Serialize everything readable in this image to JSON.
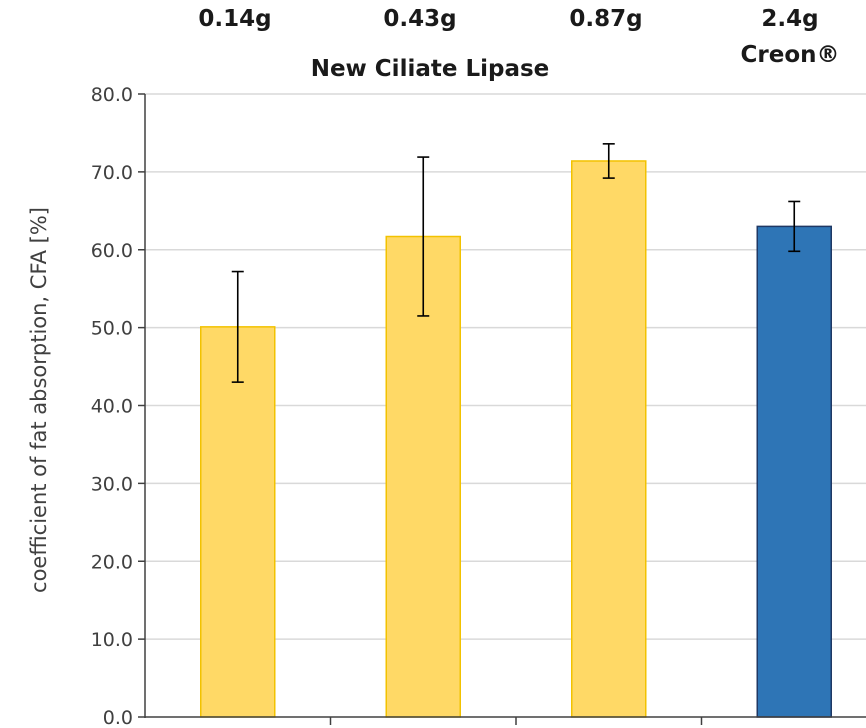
{
  "chart_data": {
    "type": "bar",
    "categories": [
      "0.14g",
      "0.43g",
      "0.87g",
      "2.4g"
    ],
    "values": [
      50.1,
      61.7,
      71.4,
      63.0
    ],
    "error": [
      7.1,
      10.2,
      2.2,
      3.2
    ],
    "group_label": "New Ciliate Lipase",
    "creon_label": "Creon®",
    "xlabel": "",
    "ylabel": "coefficient of fat absorption, CFA [%]",
    "ylim": [
      0,
      80
    ],
    "yticks": [
      "0.0",
      "10.0",
      "20.0",
      "30.0",
      "40.0",
      "50.0",
      "60.0",
      "70.0",
      "80.0"
    ],
    "grid": true,
    "colors": {
      "lipase_fill": "#FFD966",
      "lipase_border": "#F2C200",
      "creon_fill": "#2E75B6",
      "creon_border": "#1F3864",
      "grid": "#D9D9D9",
      "axis": "#404040",
      "error": "#000000"
    },
    "bar_colors": [
      "lipase",
      "lipase",
      "lipase",
      "creon"
    ]
  }
}
